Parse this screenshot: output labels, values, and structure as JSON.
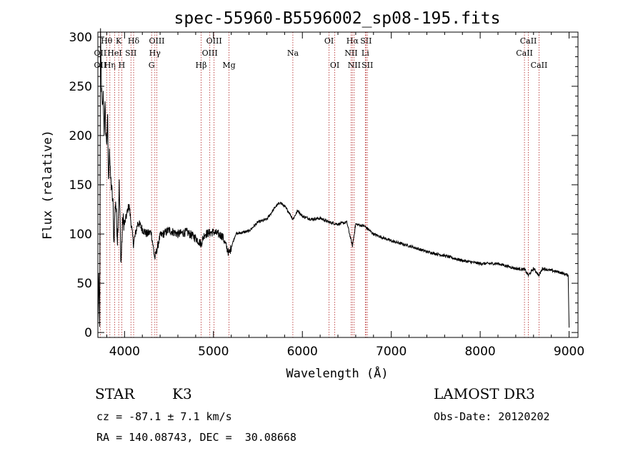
{
  "chart_data": {
    "type": "line",
    "title": "spec-55960-B5596002_sp08-195.fits",
    "xlabel": "Wavelength (Å)",
    "ylabel": "Flux (relative)",
    "xlim": [
      3700,
      9100
    ],
    "ylim": [
      -5,
      305
    ],
    "xticks": [
      4000,
      5000,
      6000,
      7000,
      8000,
      9000
    ],
    "yticks": [
      0,
      50,
      100,
      150,
      200,
      250,
      300
    ],
    "series": [
      {
        "name": "spectrum",
        "x": [
          3700,
          3710,
          3720,
          3730,
          3740,
          3750,
          3760,
          3770,
          3780,
          3790,
          3800,
          3810,
          3820,
          3830,
          3840,
          3850,
          3860,
          3870,
          3880,
          3890,
          3900,
          3920,
          3940,
          3960,
          3980,
          4000,
          4050,
          4100,
          4150,
          4200,
          4250,
          4300,
          4340,
          4400,
          4500,
          4600,
          4700,
          4800,
          4861,
          4900,
          5000,
          5100,
          5175,
          5250,
          5400,
          5500,
          5600,
          5700,
          5750,
          5800,
          5850,
          5893,
          5950,
          6000,
          6100,
          6200,
          6300,
          6400,
          6500,
          6563,
          6600,
          6700,
          6800,
          7000,
          7200,
          7400,
          7600,
          7800,
          8000,
          8200,
          8400,
          8500,
          8542,
          8600,
          8662,
          8700,
          8800,
          8900,
          8990,
          9000
        ],
        "y": [
          5,
          60,
          3,
          300,
          250,
          225,
          240,
          205,
          228,
          200,
          195,
          215,
          150,
          190,
          160,
          150,
          140,
          130,
          90,
          120,
          135,
          95,
          150,
          70,
          115,
          110,
          130,
          90,
          112,
          105,
          100,
          102,
          75,
          98,
          104,
          100,
          102,
          96,
          90,
          100,
          102,
          98,
          80,
          100,
          103,
          112,
          115,
          128,
          132,
          128,
          122,
          115,
          124,
          118,
          115,
          116,
          112,
          110,
          112,
          88,
          110,
          108,
          100,
          93,
          88,
          82,
          78,
          73,
          70,
          70,
          65,
          64,
          58,
          65,
          58,
          65,
          63,
          61,
          58,
          5
        ]
      }
    ],
    "spectral_lines": [
      {
        "label": "OII",
        "x": 3727,
        "row": 1
      },
      {
        "label": "OII",
        "x": 3727,
        "row": 2
      },
      {
        "label": "Hθ",
        "x": 3798,
        "row": 0
      },
      {
        "label": "Hη",
        "x": 3835,
        "row": 2
      },
      {
        "label": "HeI",
        "x": 3889,
        "row": 1
      },
      {
        "label": "K",
        "x": 3934,
        "row": 0
      },
      {
        "label": "H",
        "x": 3969,
        "row": 2
      },
      {
        "label": "SII",
        "x": 4072,
        "row": 1
      },
      {
        "label": "Hδ",
        "x": 4102,
        "row": 0
      },
      {
        "label": "G",
        "x": 4304,
        "row": 2
      },
      {
        "label": "OIII",
        "x": 4363,
        "row": 0
      },
      {
        "label": "Hγ",
        "x": 4341,
        "row": 1
      },
      {
        "label": "Hβ",
        "x": 4861,
        "row": 2
      },
      {
        "label": "OIII",
        "x": 4959,
        "row": 1
      },
      {
        "label": "OIII",
        "x": 5007,
        "row": 0
      },
      {
        "label": "Mg",
        "x": 5175,
        "row": 2
      },
      {
        "label": "Na",
        "x": 5893,
        "row": 1
      },
      {
        "label": "OI",
        "x": 6300,
        "row": 0
      },
      {
        "label": "OI",
        "x": 6364,
        "row": 2
      },
      {
        "label": "Hα",
        "x": 6563,
        "row": 0
      },
      {
        "label": "NII",
        "x": 6548,
        "row": 1
      },
      {
        "label": "NII",
        "x": 6583,
        "row": 2
      },
      {
        "label": "SII",
        "x": 6716,
        "row": 0
      },
      {
        "label": "Li",
        "x": 6708,
        "row": 1
      },
      {
        "label": "SII",
        "x": 6731,
        "row": 2
      },
      {
        "label": "CaII",
        "x": 8542,
        "row": 0
      },
      {
        "label": "CaII",
        "x": 8498,
        "row": 1
      },
      {
        "label": "CaII",
        "x": 8662,
        "row": 2
      }
    ]
  },
  "info": {
    "class": "STAR",
    "subclass": "K3",
    "survey": "LAMOST DR3",
    "redshift": "cz = -87.1 ± 7.1 km/s",
    "obs_date": "Obs-Date: 20120202",
    "coords": "RA = 140.08743, DEC =  30.08668"
  },
  "colors": {
    "line_marker": "#b22222",
    "spectrum": "#000000",
    "axes": "#000000"
  }
}
